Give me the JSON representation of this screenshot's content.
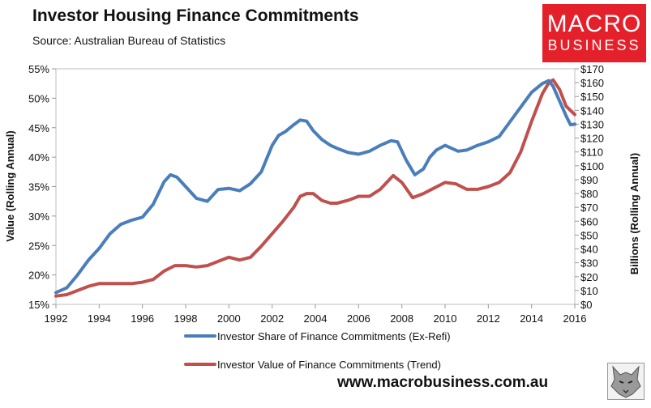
{
  "header": {
    "title": "Investor Housing Finance Commitments",
    "subtitle": "Source: Australian Bureau of Statistics"
  },
  "brand": {
    "line1": "MACRO",
    "line2": "BUSINESS",
    "color": "#e4202a"
  },
  "footer": {
    "website": "www.macrobusiness.com.au",
    "logo_icon": "wolf-logo-icon"
  },
  "chart_data": {
    "type": "line",
    "title": "Investor Housing Finance Commitments",
    "subtitle": "Source: Australian Bureau of Statistics",
    "xlabel": "",
    "ylabel": "Value (Rolling Annual)",
    "y2label": "Billions (Rolling Annual)",
    "xlim": [
      1992,
      2016
    ],
    "ylim": [
      15,
      55
    ],
    "y2lim": [
      0,
      170
    ],
    "x_ticks": [
      "1992",
      "1994",
      "1996",
      "1998",
      "2000",
      "2002",
      "2004",
      "2006",
      "2008",
      "2010",
      "2012",
      "2014",
      "2016"
    ],
    "y_ticks": [
      "15%",
      "20%",
      "25%",
      "30%",
      "35%",
      "40%",
      "45%",
      "50%",
      "55%"
    ],
    "y2_ticks": [
      "$0",
      "$10",
      "$20",
      "$30",
      "$40",
      "$50",
      "$60",
      "$70",
      "$80",
      "$90",
      "$100",
      "$110",
      "$120",
      "$130",
      "$140",
      "$150",
      "$160",
      "$170"
    ],
    "grid": false,
    "legend": "bottom",
    "series": [
      {
        "name": "Investor Share of Finance Commitments (Ex-Refi)",
        "axis": "left",
        "color": "#4a7ebb",
        "x": [
          1992,
          1992.5,
          1993,
          1993.5,
          1994,
          1994.5,
          1995,
          1995.5,
          1996,
          1996.5,
          1997,
          1997.3,
          1997.6,
          1998,
          1998.5,
          1999,
          1999.5,
          2000,
          2000.5,
          2001,
          2001.5,
          2002,
          2002.3,
          2002.6,
          2003,
          2003.3,
          2003.6,
          2003.9,
          2004.3,
          2004.7,
          2005,
          2005.5,
          2006,
          2006.5,
          2007,
          2007.5,
          2007.8,
          2008.2,
          2008.6,
          2009,
          2009.3,
          2009.6,
          2010,
          2010.3,
          2010.6,
          2011,
          2011.5,
          2012,
          2012.5,
          2013,
          2013.5,
          2014,
          2014.5,
          2014.8,
          2015,
          2015.3,
          2015.6,
          2015.8,
          2016
        ],
        "values": [
          17,
          17.8,
          20,
          22.5,
          24.5,
          27,
          28.6,
          29.3,
          29.8,
          32,
          35.8,
          37,
          36.6,
          35,
          33,
          32.5,
          34.5,
          34.7,
          34.3,
          35.5,
          37.5,
          42,
          43.7,
          44.3,
          45.5,
          46.3,
          46.1,
          44.5,
          43,
          42,
          41.5,
          40.8,
          40.5,
          41,
          42,
          42.8,
          42.6,
          39.5,
          37,
          38,
          40,
          41.2,
          42,
          41.5,
          41,
          41.2,
          42,
          42.6,
          43.5,
          46,
          48.5,
          51,
          52.5,
          53,
          52,
          49.5,
          47,
          45.5,
          45.6
        ]
      },
      {
        "name": "Investor Value of Finance Commitments (Trend)",
        "axis": "right",
        "color": "#c0504d",
        "x": [
          1992,
          1992.5,
          1993,
          1993.5,
          1994,
          1994.5,
          1995,
          1995.5,
          1996,
          1996.5,
          1997,
          1997.5,
          1998,
          1998.5,
          1999,
          1999.5,
          2000,
          2000.5,
          2001,
          2001.5,
          2002,
          2002.5,
          2003,
          2003.3,
          2003.6,
          2003.9,
          2004.3,
          2004.7,
          2005,
          2005.5,
          2006,
          2006.5,
          2007,
          2007.3,
          2007.6,
          2008,
          2008.5,
          2009,
          2009.5,
          2010,
          2010.5,
          2011,
          2011.5,
          2012,
          2012.5,
          2013,
          2013.5,
          2014,
          2014.5,
          2014.8,
          2015,
          2015.3,
          2015.6,
          2016
        ],
        "values": [
          6,
          7,
          10,
          13,
          15,
          15,
          15,
          15,
          16,
          18,
          24,
          28,
          28,
          27,
          28,
          31,
          34,
          32,
          34,
          42,
          51,
          60,
          70,
          78,
          80,
          80,
          75,
          73,
          73,
          75,
          78,
          78,
          83,
          88,
          93,
          88,
          77,
          80,
          84,
          88,
          87,
          83,
          83,
          85,
          88,
          95,
          110,
          132,
          152,
          160,
          162,
          155,
          143,
          137
        ]
      }
    ]
  }
}
